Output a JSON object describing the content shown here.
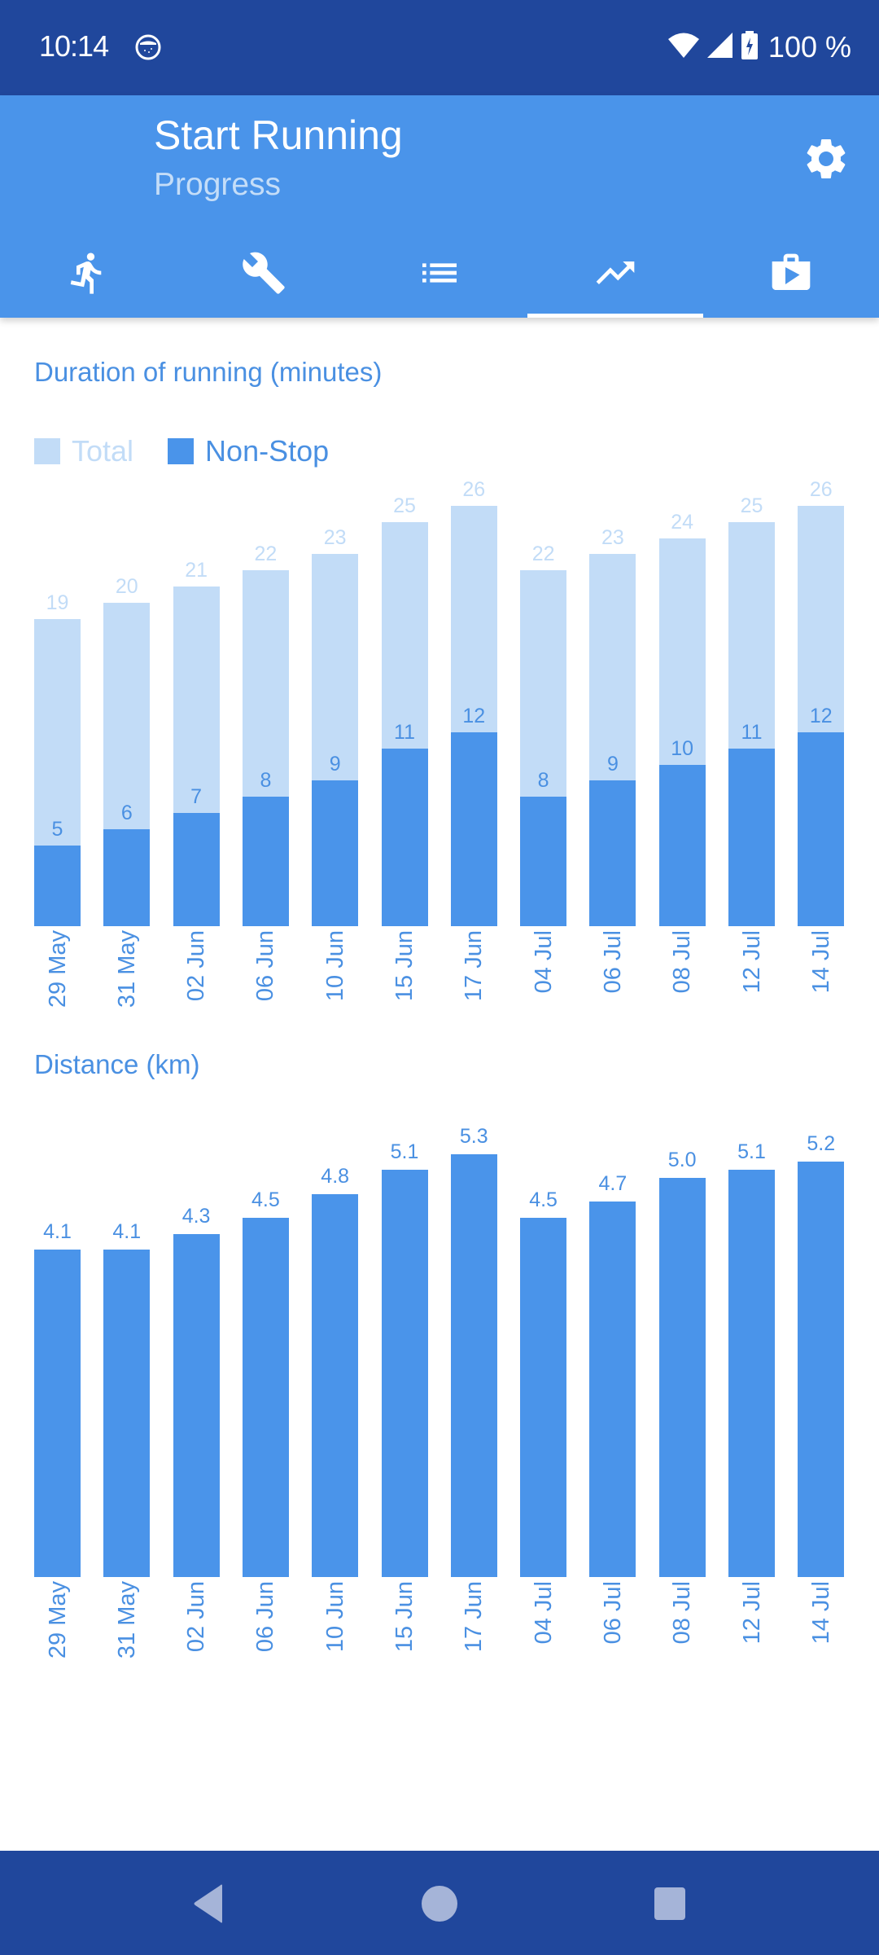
{
  "status_bar": {
    "time": "10:14",
    "battery_text": "100 %",
    "icons": [
      "notification-app-icon",
      "wifi-icon",
      "cell-signal-icon",
      "battery-charging-icon"
    ]
  },
  "app_bar": {
    "title": "Start Running",
    "subtitle": "Progress",
    "settings_icon": "gear-icon",
    "tabs": [
      {
        "icon": "run-icon",
        "active": false
      },
      {
        "icon": "wrench-icon",
        "active": false
      },
      {
        "icon": "list-icon",
        "active": false
      },
      {
        "icon": "trending-up-icon",
        "active": true
      },
      {
        "icon": "shop-play-icon",
        "active": false
      }
    ]
  },
  "colors": {
    "status_bar": "#20479c",
    "app_bar": "#4a94ea",
    "accent": "#4a90e2",
    "total_bar": "#c2dcf7",
    "nonstop_bar": "#4a94ea",
    "subtitle": "#c4ddf8"
  },
  "duration_chart": {
    "title": "Duration of running (minutes)",
    "legend": {
      "total": "Total",
      "nonstop": "Non-Stop"
    }
  },
  "distance_chart": {
    "title": "Distance (km)"
  },
  "chart_data": [
    {
      "type": "bar",
      "stacked": "overlay",
      "title": "Duration of running (minutes)",
      "xlabel": "",
      "ylabel": "",
      "categories": [
        "29 May",
        "31 May",
        "02 Jun",
        "06 Jun",
        "10 Jun",
        "15 Jun",
        "17 Jun",
        "04 Jul",
        "06 Jul",
        "08 Jul",
        "12 Jul",
        "14 Jul"
      ],
      "series": [
        {
          "name": "Total",
          "color": "#c2dcf7",
          "values": [
            19,
            20,
            21,
            22,
            23,
            25,
            26,
            22,
            23,
            24,
            25,
            26
          ]
        },
        {
          "name": "Non-Stop",
          "color": "#4a94ea",
          "values": [
            5,
            6,
            7,
            8,
            9,
            11,
            12,
            8,
            9,
            10,
            11,
            12
          ]
        }
      ],
      "ylim": [
        0,
        26
      ],
      "grid": false,
      "legend_position": "top-left"
    },
    {
      "type": "bar",
      "title": "Distance (km)",
      "xlabel": "",
      "ylabel": "",
      "categories": [
        "29 May",
        "31 May",
        "02 Jun",
        "06 Jun",
        "10 Jun",
        "15 Jun",
        "17 Jun",
        "04 Jul",
        "06 Jul",
        "08 Jul",
        "12 Jul",
        "14 Jul"
      ],
      "values": [
        4.1,
        4.1,
        4.3,
        4.5,
        4.8,
        5.1,
        5.3,
        4.5,
        4.7,
        5.0,
        5.1,
        5.2
      ],
      "value_labels": [
        "4.1",
        "4.1",
        "4.3",
        "4.5",
        "4.8",
        "5.1",
        "5.3",
        "4.5",
        "4.7",
        "5.0",
        "5.1",
        "5.2"
      ],
      "ylim": [
        0,
        5.3
      ],
      "grid": false
    }
  ],
  "nav_bar": {
    "buttons": [
      "back-icon",
      "home-icon",
      "recents-icon"
    ]
  }
}
